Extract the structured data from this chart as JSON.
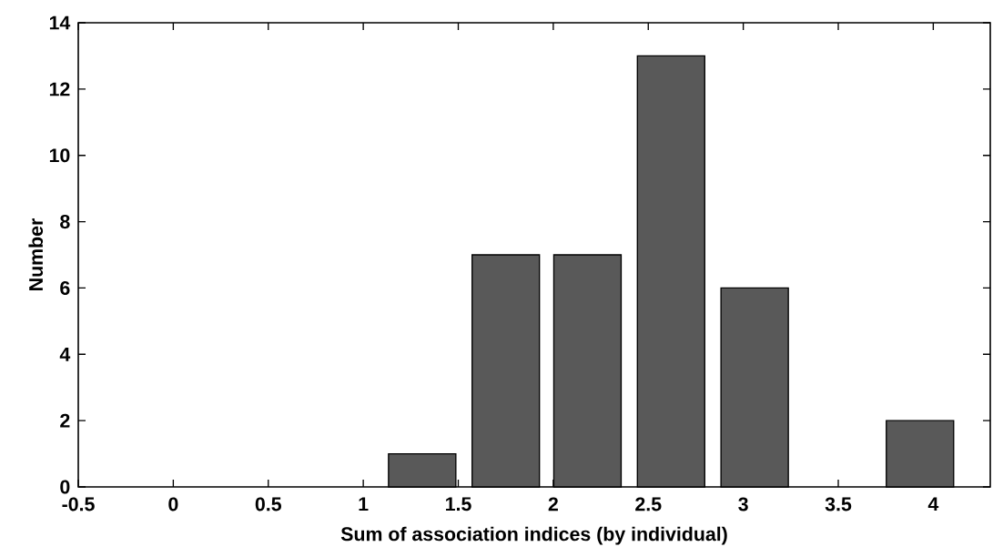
{
  "chart_data": {
    "type": "bar",
    "xlabel": "Sum of association indices (by individual)",
    "ylabel": "Number",
    "x": [
      1.31,
      1.75,
      2.18,
      2.62,
      3.06,
      3.93
    ],
    "values": [
      1,
      7,
      7,
      13,
      6,
      2
    ],
    "color": "#595959",
    "xlim": [
      -0.5,
      4.3
    ],
    "ylim": [
      0,
      14
    ],
    "xticks": [
      -0.5,
      0,
      0.5,
      1,
      1.5,
      2,
      2.5,
      3,
      3.5,
      4
    ],
    "yticks": [
      0,
      2,
      4,
      6,
      8,
      10,
      12,
      14
    ],
    "grid": false
  }
}
